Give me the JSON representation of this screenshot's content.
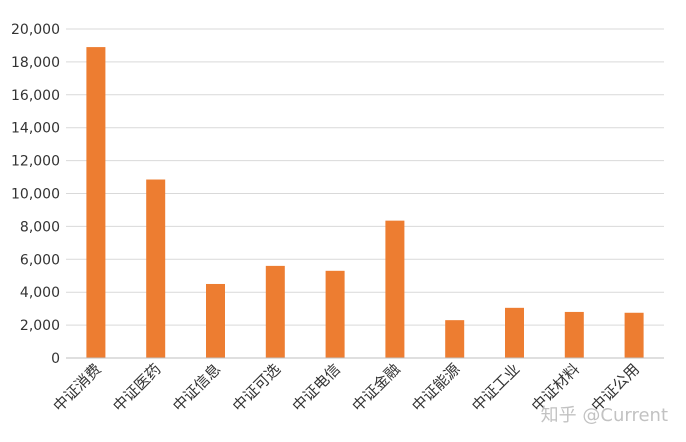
{
  "chart_data": {
    "type": "bar",
    "categories": [
      "中证消费",
      "中证医药",
      "中证信息",
      "中证可选",
      "中证电信",
      "中证金融",
      "中证能源",
      "中证工业",
      "中证材料",
      "中证公用"
    ],
    "values": [
      18900,
      10850,
      4500,
      5600,
      5300,
      8350,
      2300,
      3050,
      2800,
      2750
    ],
    "ylim": [
      0,
      20000
    ],
    "yticks": [
      0,
      2000,
      4000,
      6000,
      8000,
      10000,
      12000,
      14000,
      16000,
      18000,
      20000
    ],
    "ytick_labels": [
      "0",
      "2,000",
      "4,000",
      "6,000",
      "8,000",
      "10,000",
      "12,000",
      "14,000",
      "16,000",
      "18,000",
      "20,000"
    ],
    "grid": true,
    "legend": "none",
    "bar_color": "#ED7D31",
    "grid_color": "#D9D9D9"
  },
  "watermark": {
    "text": "知乎 @Current"
  }
}
